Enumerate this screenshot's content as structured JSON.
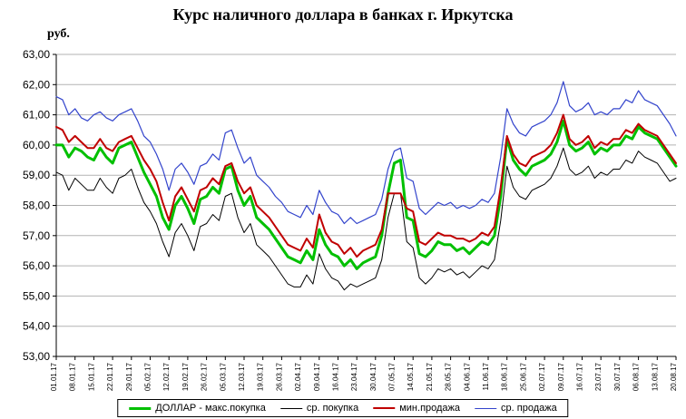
{
  "chart_data": {
    "type": "line",
    "title": "Курс наличного доллара в банках г. Иркутска",
    "ylabel": "руб.",
    "ylim": [
      53,
      63
    ],
    "grid": "horizontal",
    "legend_position": "bottom",
    "y_tick_labels": [
      "53,00",
      "54,00",
      "55,00",
      "56,00",
      "57,00",
      "58,00",
      "59,00",
      "60,00",
      "61,00",
      "62,00",
      "63,00"
    ],
    "x_labels": [
      "01.01.17",
      "08.01.17",
      "15.01.17",
      "22.01.17",
      "29.01.17",
      "05.02.17",
      "12.02.17",
      "19.02.17",
      "26.02.17",
      "05.03.17",
      "12.03.17",
      "19.03.17",
      "26.03.17",
      "02.04.17",
      "09.04.17",
      "16.04.17",
      "23.04.17",
      "30.04.17",
      "07.05.17",
      "14.05.17",
      "21.05.17",
      "28.05.17",
      "04.06.17",
      "11.06.17",
      "18.06.17",
      "25.06.17",
      "02.07.17",
      "09.07.17",
      "16.07.17",
      "23.07.17",
      "30.07.17",
      "06.08.17",
      "13.08.17",
      "20.08.17"
    ],
    "points_per_label": 3,
    "series": [
      {
        "name": "ДОЛЛАР - макс.покупка",
        "color": "#00c000",
        "width": 3,
        "values": [
          60.0,
          60.0,
          59.6,
          59.9,
          59.8,
          59.6,
          59.5,
          59.9,
          59.6,
          59.4,
          59.9,
          60.0,
          60.1,
          59.6,
          59.1,
          58.7,
          58.3,
          57.6,
          57.2,
          58.0,
          58.3,
          57.9,
          57.4,
          58.2,
          58.3,
          58.6,
          58.4,
          59.2,
          59.3,
          58.5,
          58.0,
          58.3,
          57.6,
          57.4,
          57.2,
          56.9,
          56.6,
          56.3,
          56.2,
          56.1,
          56.5,
          56.2,
          57.2,
          56.7,
          56.4,
          56.3,
          56.0,
          56.2,
          55.9,
          56.1,
          56.2,
          56.3,
          57.0,
          58.4,
          59.4,
          59.5,
          57.6,
          57.5,
          56.4,
          56.3,
          56.5,
          56.8,
          56.7,
          56.7,
          56.5,
          56.6,
          56.4,
          56.6,
          56.8,
          56.7,
          57.0,
          58.3,
          60.2,
          59.5,
          59.2,
          59.0,
          59.3,
          59.4,
          59.5,
          59.7,
          60.1,
          60.8,
          60.0,
          59.8,
          59.9,
          60.1,
          59.7,
          59.9,
          59.8,
          60.0,
          60.0,
          60.3,
          60.2,
          60.6,
          60.4,
          60.3,
          60.2,
          59.9,
          59.6,
          59.3
        ]
      },
      {
        "name": "ср. покупка",
        "color": "#000000",
        "width": 1,
        "values": [
          59.1,
          59.0,
          58.5,
          58.9,
          58.7,
          58.5,
          58.5,
          58.9,
          58.6,
          58.4,
          58.9,
          59.0,
          59.2,
          58.6,
          58.1,
          57.8,
          57.4,
          56.8,
          56.3,
          57.1,
          57.4,
          57.0,
          56.5,
          57.3,
          57.4,
          57.7,
          57.5,
          58.3,
          58.4,
          57.6,
          57.1,
          57.4,
          56.7,
          56.5,
          56.3,
          56.0,
          55.7,
          55.4,
          55.3,
          55.3,
          55.7,
          55.4,
          56.4,
          55.9,
          55.6,
          55.5,
          55.2,
          55.4,
          55.3,
          55.4,
          55.5,
          55.6,
          56.2,
          57.6,
          58.4,
          58.4,
          56.8,
          56.6,
          55.6,
          55.4,
          55.6,
          55.9,
          55.8,
          55.9,
          55.7,
          55.8,
          55.6,
          55.8,
          56.0,
          55.9,
          56.2,
          57.5,
          59.3,
          58.6,
          58.3,
          58.2,
          58.5,
          58.6,
          58.7,
          58.9,
          59.3,
          59.9,
          59.2,
          59.0,
          59.1,
          59.3,
          58.9,
          59.1,
          59.0,
          59.2,
          59.2,
          59.5,
          59.4,
          59.8,
          59.6,
          59.5,
          59.4,
          59.1,
          58.8,
          58.9
        ]
      },
      {
        "name": "мин.продажа",
        "color": "#c00000",
        "width": 2,
        "values": [
          60.6,
          60.5,
          60.1,
          60.3,
          60.1,
          59.9,
          59.9,
          60.2,
          59.9,
          59.8,
          60.1,
          60.2,
          60.3,
          59.9,
          59.5,
          59.2,
          58.8,
          58.1,
          57.5,
          58.3,
          58.6,
          58.2,
          57.8,
          58.5,
          58.6,
          58.9,
          58.7,
          59.3,
          59.4,
          58.8,
          58.4,
          58.6,
          58.0,
          57.8,
          57.6,
          57.3,
          57.0,
          56.7,
          56.6,
          56.5,
          56.9,
          56.6,
          57.7,
          57.1,
          56.8,
          56.7,
          56.4,
          56.6,
          56.3,
          56.5,
          56.6,
          56.7,
          57.2,
          58.4,
          58.4,
          58.4,
          57.9,
          57.8,
          56.8,
          56.7,
          56.9,
          57.1,
          57.0,
          57.0,
          56.9,
          56.9,
          56.8,
          56.9,
          57.1,
          57.0,
          57.3,
          58.6,
          60.3,
          59.7,
          59.4,
          59.3,
          59.6,
          59.7,
          59.8,
          60.0,
          60.4,
          61.0,
          60.2,
          60.0,
          60.1,
          60.3,
          59.9,
          60.1,
          60.0,
          60.2,
          60.2,
          60.5,
          60.4,
          60.7,
          60.5,
          60.4,
          60.3,
          60.0,
          59.7,
          59.4
        ]
      },
      {
        "name": "ср. продажа",
        "color": "#3344cc",
        "width": 1.2,
        "values": [
          61.6,
          61.5,
          61.0,
          61.2,
          60.9,
          60.8,
          61.0,
          61.1,
          60.9,
          60.8,
          61.0,
          61.1,
          61.2,
          60.8,
          60.3,
          60.1,
          59.7,
          59.2,
          58.5,
          59.2,
          59.4,
          59.1,
          58.7,
          59.3,
          59.4,
          59.7,
          59.5,
          60.4,
          60.5,
          59.9,
          59.4,
          59.6,
          59.0,
          58.8,
          58.6,
          58.3,
          58.1,
          57.8,
          57.7,
          57.6,
          58.0,
          57.7,
          58.5,
          58.1,
          57.8,
          57.7,
          57.4,
          57.6,
          57.4,
          57.5,
          57.6,
          57.7,
          58.2,
          59.2,
          59.8,
          59.9,
          58.9,
          58.8,
          57.9,
          57.7,
          57.9,
          58.1,
          58.0,
          58.1,
          57.9,
          58.0,
          57.9,
          58.0,
          58.2,
          58.1,
          58.4,
          59.6,
          61.2,
          60.7,
          60.4,
          60.3,
          60.6,
          60.7,
          60.8,
          61.0,
          61.4,
          62.1,
          61.3,
          61.1,
          61.2,
          61.4,
          61.0,
          61.1,
          61.0,
          61.2,
          61.2,
          61.5,
          61.4,
          61.8,
          61.5,
          61.4,
          61.3,
          61.0,
          60.7,
          60.3
        ]
      }
    ]
  }
}
